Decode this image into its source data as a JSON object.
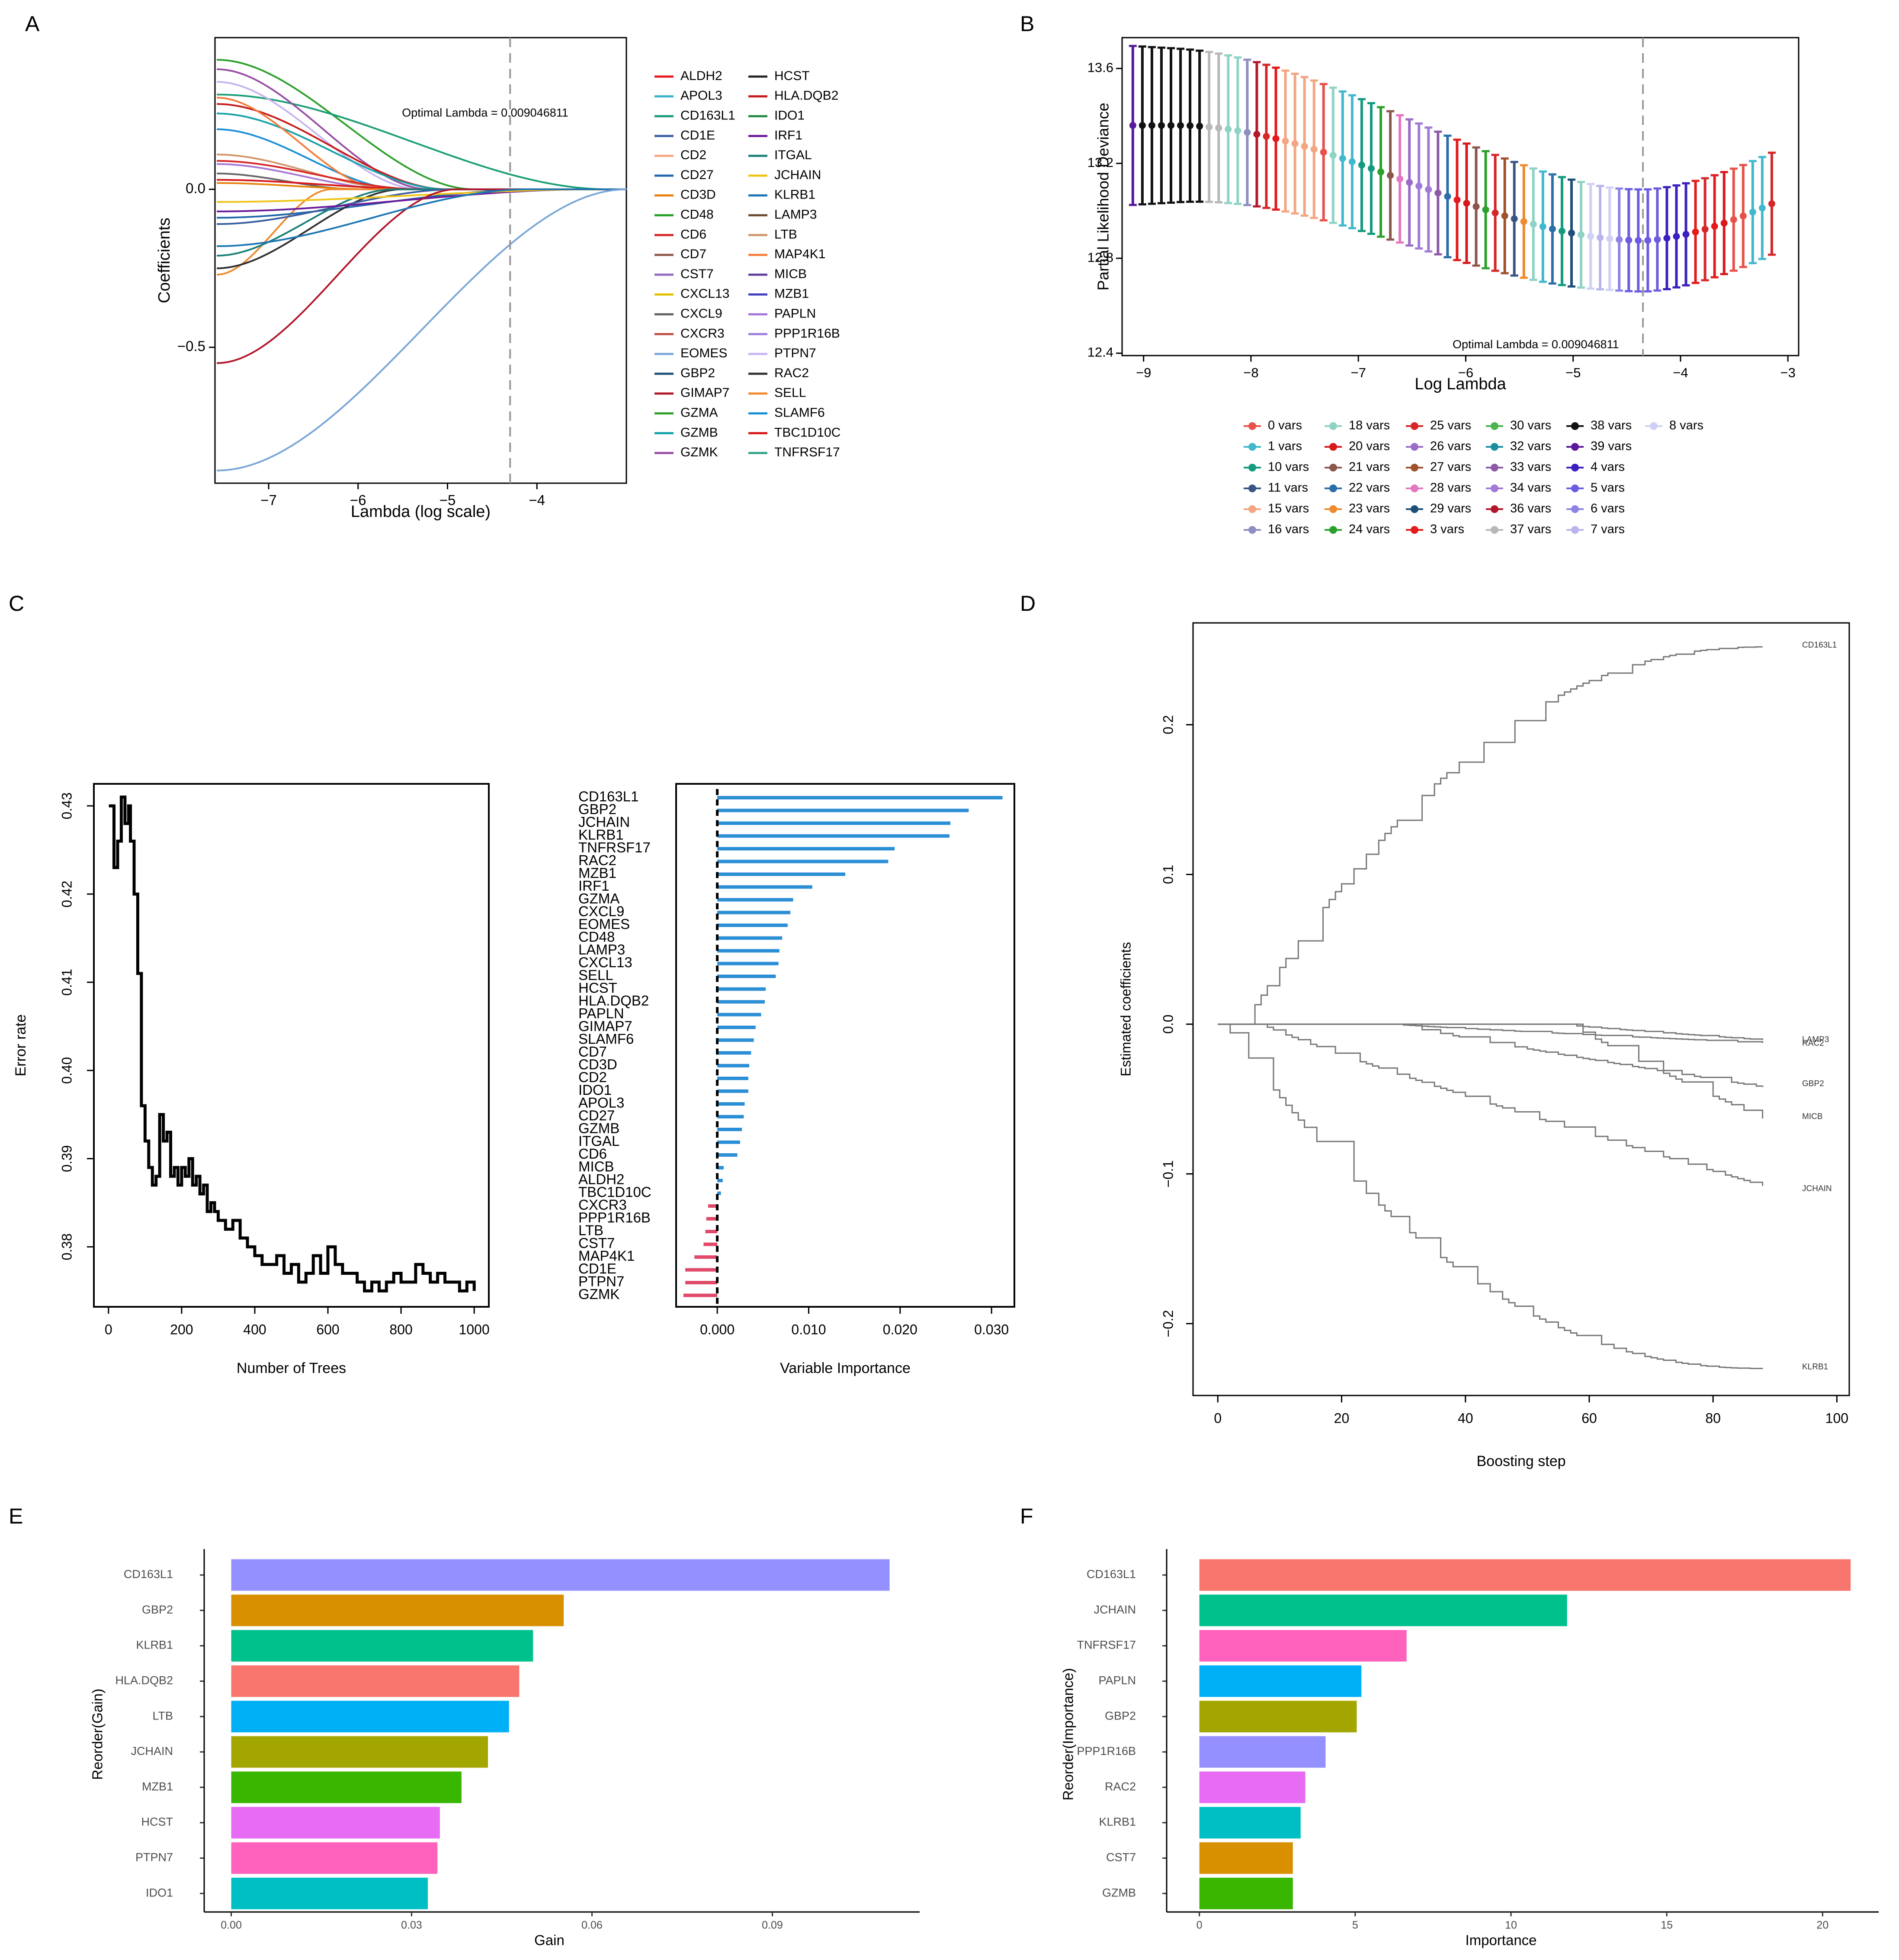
{
  "panel_labels": [
    "A",
    "B",
    "C",
    "D",
    "E",
    "F"
  ],
  "chart_data": [
    {
      "panel": "A",
      "type": "line",
      "xlabel": "Lambda (log scale)",
      "ylabel": "Coefficients",
      "xlim": [
        -7.6,
        -3.0
      ],
      "ylim": [
        -0.93,
        0.48
      ],
      "xticks": [
        -7,
        -6,
        -5,
        -4
      ],
      "yticks": [
        -0.5,
        0.0
      ],
      "tick_labels_x": [
        "−7",
        "−6",
        "−5",
        "−4"
      ],
      "tick_labels_y": [
        "−0.5",
        "0.0"
      ],
      "vline": -4.3,
      "annotation": "Optimal Lambda = 0.009046811",
      "legend": [
        {
          "name": "ALDH2",
          "color": "#e41a1c"
        },
        {
          "name": "APOL3",
          "color": "#38b2c8"
        },
        {
          "name": "CD163L1",
          "color": "#1a9e77"
        },
        {
          "name": "CD1E",
          "color": "#3a5fa0"
        },
        {
          "name": "CD2",
          "color": "#f4a582"
        },
        {
          "name": "CD27",
          "color": "#2166ac"
        },
        {
          "name": "CD3D",
          "color": "#e6850f"
        },
        {
          "name": "CD48",
          "color": "#2ca02c"
        },
        {
          "name": "CD6",
          "color": "#d62728"
        },
        {
          "name": "CD7",
          "color": "#8c564b"
        },
        {
          "name": "CST7",
          "color": "#9467bd"
        },
        {
          "name": "CXCL13",
          "color": "#e5c000"
        },
        {
          "name": "CXCL9",
          "color": "#666666"
        },
        {
          "name": "CXCR3",
          "color": "#c0504d"
        },
        {
          "name": "EOMES",
          "color": "#7aa6d6"
        },
        {
          "name": "GBP2",
          "color": "#1f4e79"
        },
        {
          "name": "GIMAP7",
          "color": "#b2182b"
        },
        {
          "name": "GZMA",
          "color": "#33a02c"
        },
        {
          "name": "GZMB",
          "color": "#17a2a8"
        },
        {
          "name": "GZMK",
          "color": "#984ea3"
        },
        {
          "name": "HCST",
          "color": "#252525"
        },
        {
          "name": "HLA.DQB2",
          "color": "#c51b1b"
        },
        {
          "name": "IDO1",
          "color": "#238b45"
        },
        {
          "name": "IRF1",
          "color": "#6a1b9a"
        },
        {
          "name": "ITGAL",
          "color": "#1b7f79"
        },
        {
          "name": "JCHAIN",
          "color": "#f0c419"
        },
        {
          "name": "KLRB1",
          "color": "#1f77b4"
        },
        {
          "name": "LAMP3",
          "color": "#6f4e37"
        },
        {
          "name": "LTB",
          "color": "#d2966b"
        },
        {
          "name": "MAP4K1",
          "color": "#f47c3c"
        },
        {
          "name": "MICB",
          "color": "#5e3c99"
        },
        {
          "name": "MZB1",
          "color": "#3f3fbf"
        },
        {
          "name": "PAPLN",
          "color": "#a678d6"
        },
        {
          "name": "PPP1R16B",
          "color": "#9e7fd9"
        },
        {
          "name": "PTPN7",
          "color": "#c6b4f2"
        },
        {
          "name": "RAC2",
          "color": "#303030"
        },
        {
          "name": "SELL",
          "color": "#ef8a2d"
        },
        {
          "name": "SLAMF6",
          "color": "#1a8fd6"
        },
        {
          "name": "TBC1D10C",
          "color": "#d7191c"
        },
        {
          "name": "TNFRSF17",
          "color": "#36a18b"
        }
      ],
      "series": [
        {
          "name": "CD48",
          "color": "#2ca02c",
          "start": 0.41,
          "end_x": -4.7
        },
        {
          "name": "CD163L1",
          "color": "#1a9e77",
          "start": 0.3,
          "end_x": -3.2
        },
        {
          "name": "GZMK",
          "color": "#984ea3",
          "start": 0.38,
          "end_x": -5.2
        },
        {
          "name": "PTPN7",
          "color": "#c6b4f2",
          "start": 0.34,
          "end_x": -5.3
        },
        {
          "name": "HLA.DQB2",
          "color": "#c51b1b",
          "start": 0.27,
          "end_x": -5.0
        },
        {
          "name": "GZMB",
          "color": "#17a2a8",
          "start": 0.24,
          "end_x": -5.0
        },
        {
          "name": "SLAMF6",
          "color": "#1a8fd6",
          "start": 0.19,
          "end_x": -5.5
        },
        {
          "name": "MAP4K1",
          "color": "#f47c3c",
          "start": 0.29,
          "end_x": -5.7
        },
        {
          "name": "LTB",
          "color": "#d2966b",
          "start": 0.11,
          "end_x": -5.5
        },
        {
          "name": "CD6",
          "color": "#d62728",
          "start": 0.09,
          "end_x": -5.3
        },
        {
          "name": "PAPLN",
          "color": "#a678d6",
          "start": 0.08,
          "end_x": -5.6
        },
        {
          "name": "CXCL9",
          "color": "#666666",
          "start": 0.05,
          "end_x": -6.0
        },
        {
          "name": "TBC1D10C",
          "color": "#d7191c",
          "start": 0.03,
          "end_x": -5.2
        },
        {
          "name": "CD3D",
          "color": "#e6850f",
          "start": 0.02,
          "end_x": -5.8
        },
        {
          "name": "SELL",
          "color": "#ef8a2d",
          "start": -0.27,
          "end_x": -6.3
        },
        {
          "name": "CD27",
          "color": "#2166ac",
          "start": -0.09,
          "end_x": -4.0
        },
        {
          "name": "RAC2",
          "color": "#303030",
          "start": -0.25,
          "end_x": -5.5
        },
        {
          "name": "ITGAL",
          "color": "#1b7f79",
          "start": -0.21,
          "end_x": -5.6
        },
        {
          "name": "CD1E",
          "color": "#3a5fa0",
          "start": -0.11,
          "end_x": -4.9
        },
        {
          "name": "IRF1",
          "color": "#6a1b9a",
          "start": -0.07,
          "end_x": -3.4
        },
        {
          "name": "JCHAIN",
          "color": "#f0c419",
          "start": -0.04,
          "end_x": -3.3
        },
        {
          "name": "GIMAP7",
          "color": "#b2182b",
          "start": -0.55,
          "end_x": -4.9
        },
        {
          "name": "KLRB1",
          "color": "#1f77b4",
          "start": -0.18,
          "end_x": -4.1
        },
        {
          "name": "EOMES",
          "color": "#7aa6d6",
          "start": -0.89,
          "end_x": -3.0
        }
      ]
    },
    {
      "panel": "B",
      "type": "errorbar",
      "xlabel": "Log Lambda",
      "ylabel": "Partial Likelihood Deviance",
      "xlim": [
        -9.2,
        -2.9
      ],
      "ylim": [
        12.39,
        13.73
      ],
      "xticks": [
        -9,
        -8,
        -7,
        -6,
        -5,
        -4,
        -3
      ],
      "yticks": [
        12.4,
        12.8,
        13.2,
        13.6
      ],
      "tick_labels_x": [
        "−9",
        "−8",
        "−7",
        "−6",
        "−5",
        "−4",
        "−3"
      ],
      "tick_labels_y": [
        "12.4",
        "12.8",
        "13.2",
        "13.6"
      ],
      "vline": -4.35,
      "annotation": "Optimal Lambda = 0.009046811",
      "x_start": -9.1,
      "x_end": -3.15,
      "n_points": 68,
      "legend": [
        {
          "name": "0 vars",
          "color": "#e8514a"
        },
        {
          "name": "18 vars",
          "color": "#8fd3c5"
        },
        {
          "name": "25 vars",
          "color": "#d62728"
        },
        {
          "name": "30 vars",
          "color": "#4bb34b"
        },
        {
          "name": "38 vars",
          "color": "#111111"
        },
        {
          "name": "8 vars",
          "color": "#cfd0f5"
        },
        {
          "name": "1 vars",
          "color": "#42b8cf"
        },
        {
          "name": "20 vars",
          "color": "#d7191c"
        },
        {
          "name": "26 vars",
          "color": "#9a6cc8"
        },
        {
          "name": "32 vars",
          "color": "#1a8fa0"
        },
        {
          "name": "39 vars",
          "color": "#5a189a"
        },
        {
          "name": "10 vars",
          "color": "#139a80"
        },
        {
          "name": "21 vars",
          "color": "#8c564b"
        },
        {
          "name": "27 vars",
          "color": "#a0522d"
        },
        {
          "name": "33 vars",
          "color": "#8e5aa8"
        },
        {
          "name": "4 vars",
          "color": "#3c1fbf"
        },
        {
          "name": "11 vars",
          "color": "#3a5585"
        },
        {
          "name": "22 vars",
          "color": "#2b6ea8"
        },
        {
          "name": "28 vars",
          "color": "#e377c2"
        },
        {
          "name": "34 vars",
          "color": "#a07ad6"
        },
        {
          "name": "5 vars",
          "color": "#6b5ce0"
        },
        {
          "name": "15 vars",
          "color": "#f4a582"
        },
        {
          "name": "23 vars",
          "color": "#ef8a2d"
        },
        {
          "name": "29 vars",
          "color": "#1f4e79"
        },
        {
          "name": "36 vars",
          "color": "#b2182b"
        },
        {
          "name": "6 vars",
          "color": "#8d83e6"
        },
        {
          "name": "16 vars",
          "color": "#8e8ec2"
        },
        {
          "name": "24 vars",
          "color": "#2ca02c"
        },
        {
          "name": "3 vars",
          "color": "#e41a1c"
        },
        {
          "name": "37 vars",
          "color": "#b8b8b8"
        },
        {
          "name": "7 vars",
          "color": "#b9b4ee"
        }
      ]
    },
    {
      "panel": "C-left",
      "type": "line",
      "xlabel": "Number of Trees",
      "ylabel": "Error rate",
      "xlim": [
        -40,
        1040
      ],
      "ylim": [
        0.3732,
        0.4325
      ],
      "xticks": [
        0,
        200,
        400,
        600,
        800,
        1000
      ],
      "yticks": [
        0.38,
        0.39,
        0.4,
        0.41,
        0.42,
        0.43
      ],
      "tick_labels_x": [
        "0",
        "200",
        "400",
        "600",
        "800",
        "1000"
      ],
      "tick_labels_y": [
        "0.38",
        "0.39",
        "0.40",
        "0.41",
        "0.42",
        "0.43"
      ],
      "x": [
        1,
        15,
        25,
        35,
        45,
        55,
        60,
        70,
        80,
        90,
        100,
        110,
        120,
        130,
        140,
        150,
        160,
        170,
        180,
        190,
        200,
        210,
        220,
        230,
        240,
        250,
        260,
        270,
        280,
        290,
        300,
        320,
        340,
        360,
        380,
        400,
        420,
        440,
        460,
        480,
        500,
        520,
        540,
        560,
        580,
        600,
        620,
        640,
        660,
        680,
        700,
        720,
        740,
        760,
        780,
        800,
        820,
        840,
        860,
        880,
        900,
        920,
        940,
        960,
        980,
        1000
      ],
      "values": [
        0.43,
        0.423,
        0.426,
        0.431,
        0.428,
        0.43,
        0.426,
        0.42,
        0.411,
        0.396,
        0.392,
        0.389,
        0.387,
        0.388,
        0.395,
        0.392,
        0.393,
        0.388,
        0.389,
        0.387,
        0.389,
        0.388,
        0.39,
        0.387,
        0.388,
        0.386,
        0.387,
        0.384,
        0.385,
        0.384,
        0.383,
        0.382,
        0.383,
        0.381,
        0.38,
        0.379,
        0.378,
        0.378,
        0.379,
        0.377,
        0.378,
        0.376,
        0.377,
        0.379,
        0.377,
        0.38,
        0.378,
        0.377,
        0.377,
        0.376,
        0.375,
        0.376,
        0.375,
        0.376,
        0.377,
        0.376,
        0.376,
        0.378,
        0.377,
        0.376,
        0.377,
        0.376,
        0.376,
        0.375,
        0.376,
        0.375
      ]
    },
    {
      "panel": "C-right",
      "type": "bar",
      "orientation": "horizontal",
      "xlabel": "Variable Importance",
      "xlim": [
        -0.0045,
        0.0325
      ],
      "xticks": [
        0.0,
        0.01,
        0.02,
        0.03
      ],
      "tick_labels_x": [
        "0.000",
        "0.010",
        "0.020",
        "0.030"
      ],
      "categories": [
        "CD163L1",
        "GBP2",
        "JCHAIN",
        "KLRB1",
        "TNFRSF17",
        "RAC2",
        "MZB1",
        "IRF1",
        "GZMA",
        "CXCL9",
        "EOMES",
        "CD48",
        "LAMP3",
        "CXCL13",
        "SELL",
        "HCST",
        "HLA.DQB2",
        "PAPLN",
        "GIMAP7",
        "SLAMF6",
        "CD7",
        "CD3D",
        "CD2",
        "IDO1",
        "APOL3",
        "CD27",
        "GZMB",
        "ITGAL",
        "CD6",
        "MICB",
        "ALDH2",
        "TBC1D10C",
        "CXCR3",
        "PPP1R16B",
        "LTB",
        "CST7",
        "MAP4K1",
        "CD1E",
        "PTPN7",
        "GZMK"
      ],
      "values": [
        0.0312,
        0.0275,
        0.0255,
        0.0254,
        0.0194,
        0.0187,
        0.014,
        0.0104,
        0.0083,
        0.008,
        0.0077,
        0.0071,
        0.0068,
        0.0067,
        0.0064,
        0.0053,
        0.0052,
        0.0048,
        0.0042,
        0.004,
        0.0037,
        0.0035,
        0.0034,
        0.0034,
        0.003,
        0.0029,
        0.0027,
        0.0025,
        0.0022,
        0.0007,
        0.0006,
        0.0004,
        -0.001,
        -0.0012,
        -0.0013,
        -0.0015,
        -0.0025,
        -0.0035,
        -0.0035,
        -0.0037
      ],
      "colors": {
        "positive": "#2b8fd6",
        "negative": "#e0496a"
      }
    },
    {
      "panel": "D",
      "type": "line",
      "xlabel": "Boosting step",
      "ylabel": "Estimated coefficients",
      "xlim": [
        -4,
        102
      ],
      "ylim": [
        -0.248,
        0.268
      ],
      "xticks": [
        0,
        20,
        40,
        60,
        80,
        100
      ],
      "yticks": [
        -0.2,
        -0.1,
        0.0,
        0.1,
        0.2
      ],
      "tick_labels_x": [
        "0",
        "20",
        "40",
        "60",
        "80",
        "100"
      ],
      "tick_labels_y": [
        "−0.2",
        "−0.1",
        "0.0",
        "0.1",
        "0.2"
      ],
      "series": [
        {
          "name": "CD163L1",
          "start_step": 4,
          "end": 0.252
        },
        {
          "name": "LAMP3",
          "start_step": 55,
          "end": -0.0105
        },
        {
          "name": "RAC2",
          "start_step": 28,
          "end": -0.0125
        },
        {
          "name": "GBP2",
          "start_step": 29,
          "end": -0.042
        },
        {
          "name": "MICB",
          "start_step": 57,
          "end": -0.063
        },
        {
          "name": "JCHAIN",
          "start_step": 7,
          "end": -0.108
        },
        {
          "name": "KLRB1",
          "start_step": 1,
          "end": -0.23
        }
      ],
      "label_positions": {
        "LAMP3": -0.0105,
        "RAC2": -0.013,
        "GBP2": -0.04,
        "MICB": -0.062,
        "JCHAIN": -0.11,
        "KLRB1": -0.229,
        "CD163L1": 0.253
      }
    },
    {
      "panel": "E",
      "type": "bar",
      "orientation": "horizontal",
      "xlabel": "Gain",
      "ylabel": "Reorder(Gain)",
      "xlim": [
        -0.0045,
        0.1145
      ],
      "xticks": [
        0.0,
        0.03,
        0.06,
        0.09
      ],
      "tick_labels_x": [
        "0.00",
        "0.03",
        "0.06",
        "0.09"
      ],
      "categories": [
        "CD163L1",
        "GBP2",
        "KLRB1",
        "HLA.DQB2",
        "LTB",
        "JCHAIN",
        "MZB1",
        "HCST",
        "PTPN7",
        "IDO1"
      ],
      "values": [
        0.1095,
        0.0553,
        0.0502,
        0.0479,
        0.0462,
        0.0427,
        0.0383,
        0.0347,
        0.0343,
        0.0327
      ],
      "colors": [
        "#9590ff",
        "#d89000",
        "#00c08b",
        "#f8766d",
        "#00b0f6",
        "#a3a500",
        "#39b600",
        "#e76bf3",
        "#ff62bc",
        "#00bfc4"
      ]
    },
    {
      "panel": "F",
      "type": "bar",
      "orientation": "horizontal",
      "xlabel": "Importance",
      "ylabel": "Reorder(Importance)",
      "xlim": [
        -1.05,
        21.8
      ],
      "xticks": [
        0,
        5,
        10,
        15,
        20
      ],
      "tick_labels_x": [
        "0",
        "5",
        "10",
        "15",
        "20"
      ],
      "categories": [
        "CD163L1",
        "JCHAIN",
        "TNFRSF17",
        "PAPLN",
        "GBP2",
        "PPP1R16B",
        "RAC2",
        "KLRB1",
        "CST7",
        "GZMB"
      ],
      "values": [
        20.9,
        11.8,
        6.65,
        5.2,
        5.05,
        4.05,
        3.4,
        3.25,
        3.0,
        3.0
      ],
      "colors": [
        "#f8766d",
        "#00c08b",
        "#ff62bc",
        "#00b0f6",
        "#a3a500",
        "#9590ff",
        "#e76bf3",
        "#00bfc4",
        "#d89000",
        "#39b600"
      ]
    }
  ]
}
